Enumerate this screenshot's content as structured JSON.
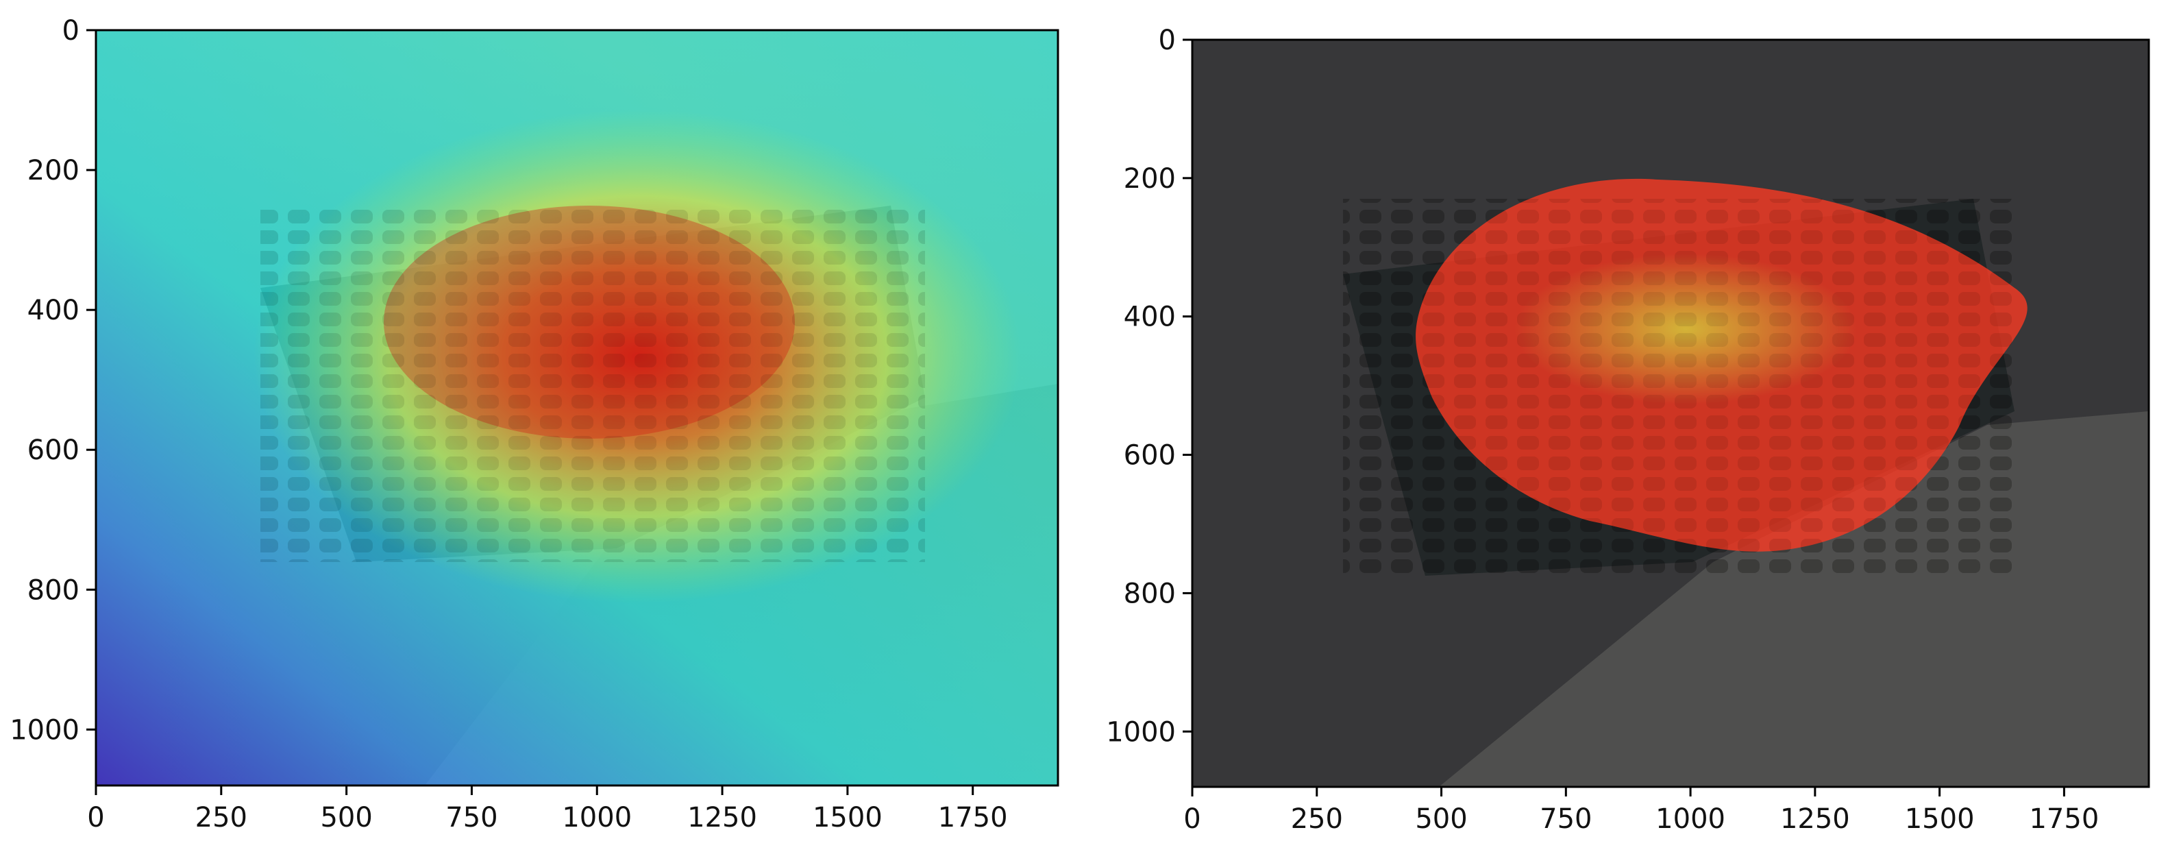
{
  "figure": {
    "panels": [
      {
        "name": "heatmap-overlay",
        "overlay": "attention heatmap (jet colormap) over classroom photo",
        "xticks": [
          "0",
          "250",
          "500",
          "750",
          "1000",
          "1250",
          "1500",
          "1750"
        ],
        "yticks": [
          "0",
          "200",
          "400",
          "600",
          "800",
          "1000"
        ],
        "xlim": [
          0,
          1920
        ],
        "ylim": [
          1080,
          0
        ]
      },
      {
        "name": "mask-overlay",
        "overlay": "red segmentation mask over darkened classroom photo",
        "xticks": [
          "0",
          "250",
          "500",
          "750",
          "1000",
          "1250",
          "1500",
          "1750"
        ],
        "yticks": [
          "0",
          "200",
          "400",
          "600",
          "800",
          "1000"
        ],
        "xlim": [
          0,
          1920
        ],
        "ylim": [
          1080,
          0
        ]
      }
    ]
  }
}
